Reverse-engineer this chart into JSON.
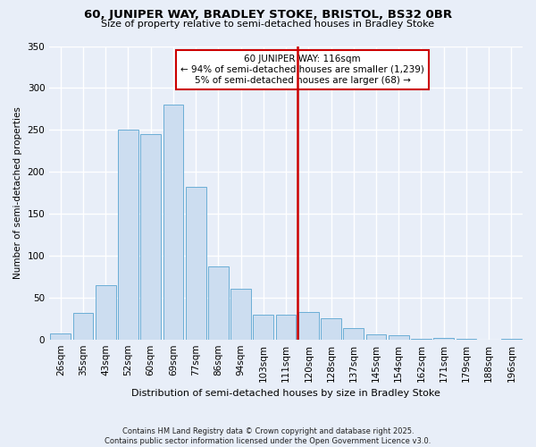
{
  "title": "60, JUNIPER WAY, BRADLEY STOKE, BRISTOL, BS32 0BR",
  "subtitle": "Size of property relative to semi-detached houses in Bradley Stoke",
  "xlabel": "Distribution of semi-detached houses by size in Bradley Stoke",
  "ylabel": "Number of semi-detached properties",
  "bar_labels": [
    "26sqm",
    "35sqm",
    "43sqm",
    "52sqm",
    "60sqm",
    "69sqm",
    "77sqm",
    "86sqm",
    "94sqm",
    "103sqm",
    "111sqm",
    "120sqm",
    "128sqm",
    "137sqm",
    "145sqm",
    "154sqm",
    "162sqm",
    "171sqm",
    "179sqm",
    "188sqm",
    "196sqm"
  ],
  "bar_values": [
    7,
    32,
    65,
    250,
    245,
    280,
    182,
    87,
    60,
    29,
    30,
    33,
    25,
    13,
    6,
    5,
    1,
    2,
    1,
    0,
    1
  ],
  "bar_color": "#ccddf0",
  "bar_edge_color": "#6baed6",
  "vline_color": "#cc0000",
  "annotation_title": "60 JUNIPER WAY: 116sqm",
  "annotation_line1": "← 94% of semi-detached houses are smaller (1,239)",
  "annotation_line2": "5% of semi-detached houses are larger (68) →",
  "annotation_box_color": "#ffffff",
  "annotation_box_edge": "#cc0000",
  "footer1": "Contains HM Land Registry data © Crown copyright and database right 2025.",
  "footer2": "Contains public sector information licensed under the Open Government Licence v3.0.",
  "ylim": [
    0,
    350
  ],
  "background_color": "#e8eef8",
  "grid_color": "#ffffff"
}
